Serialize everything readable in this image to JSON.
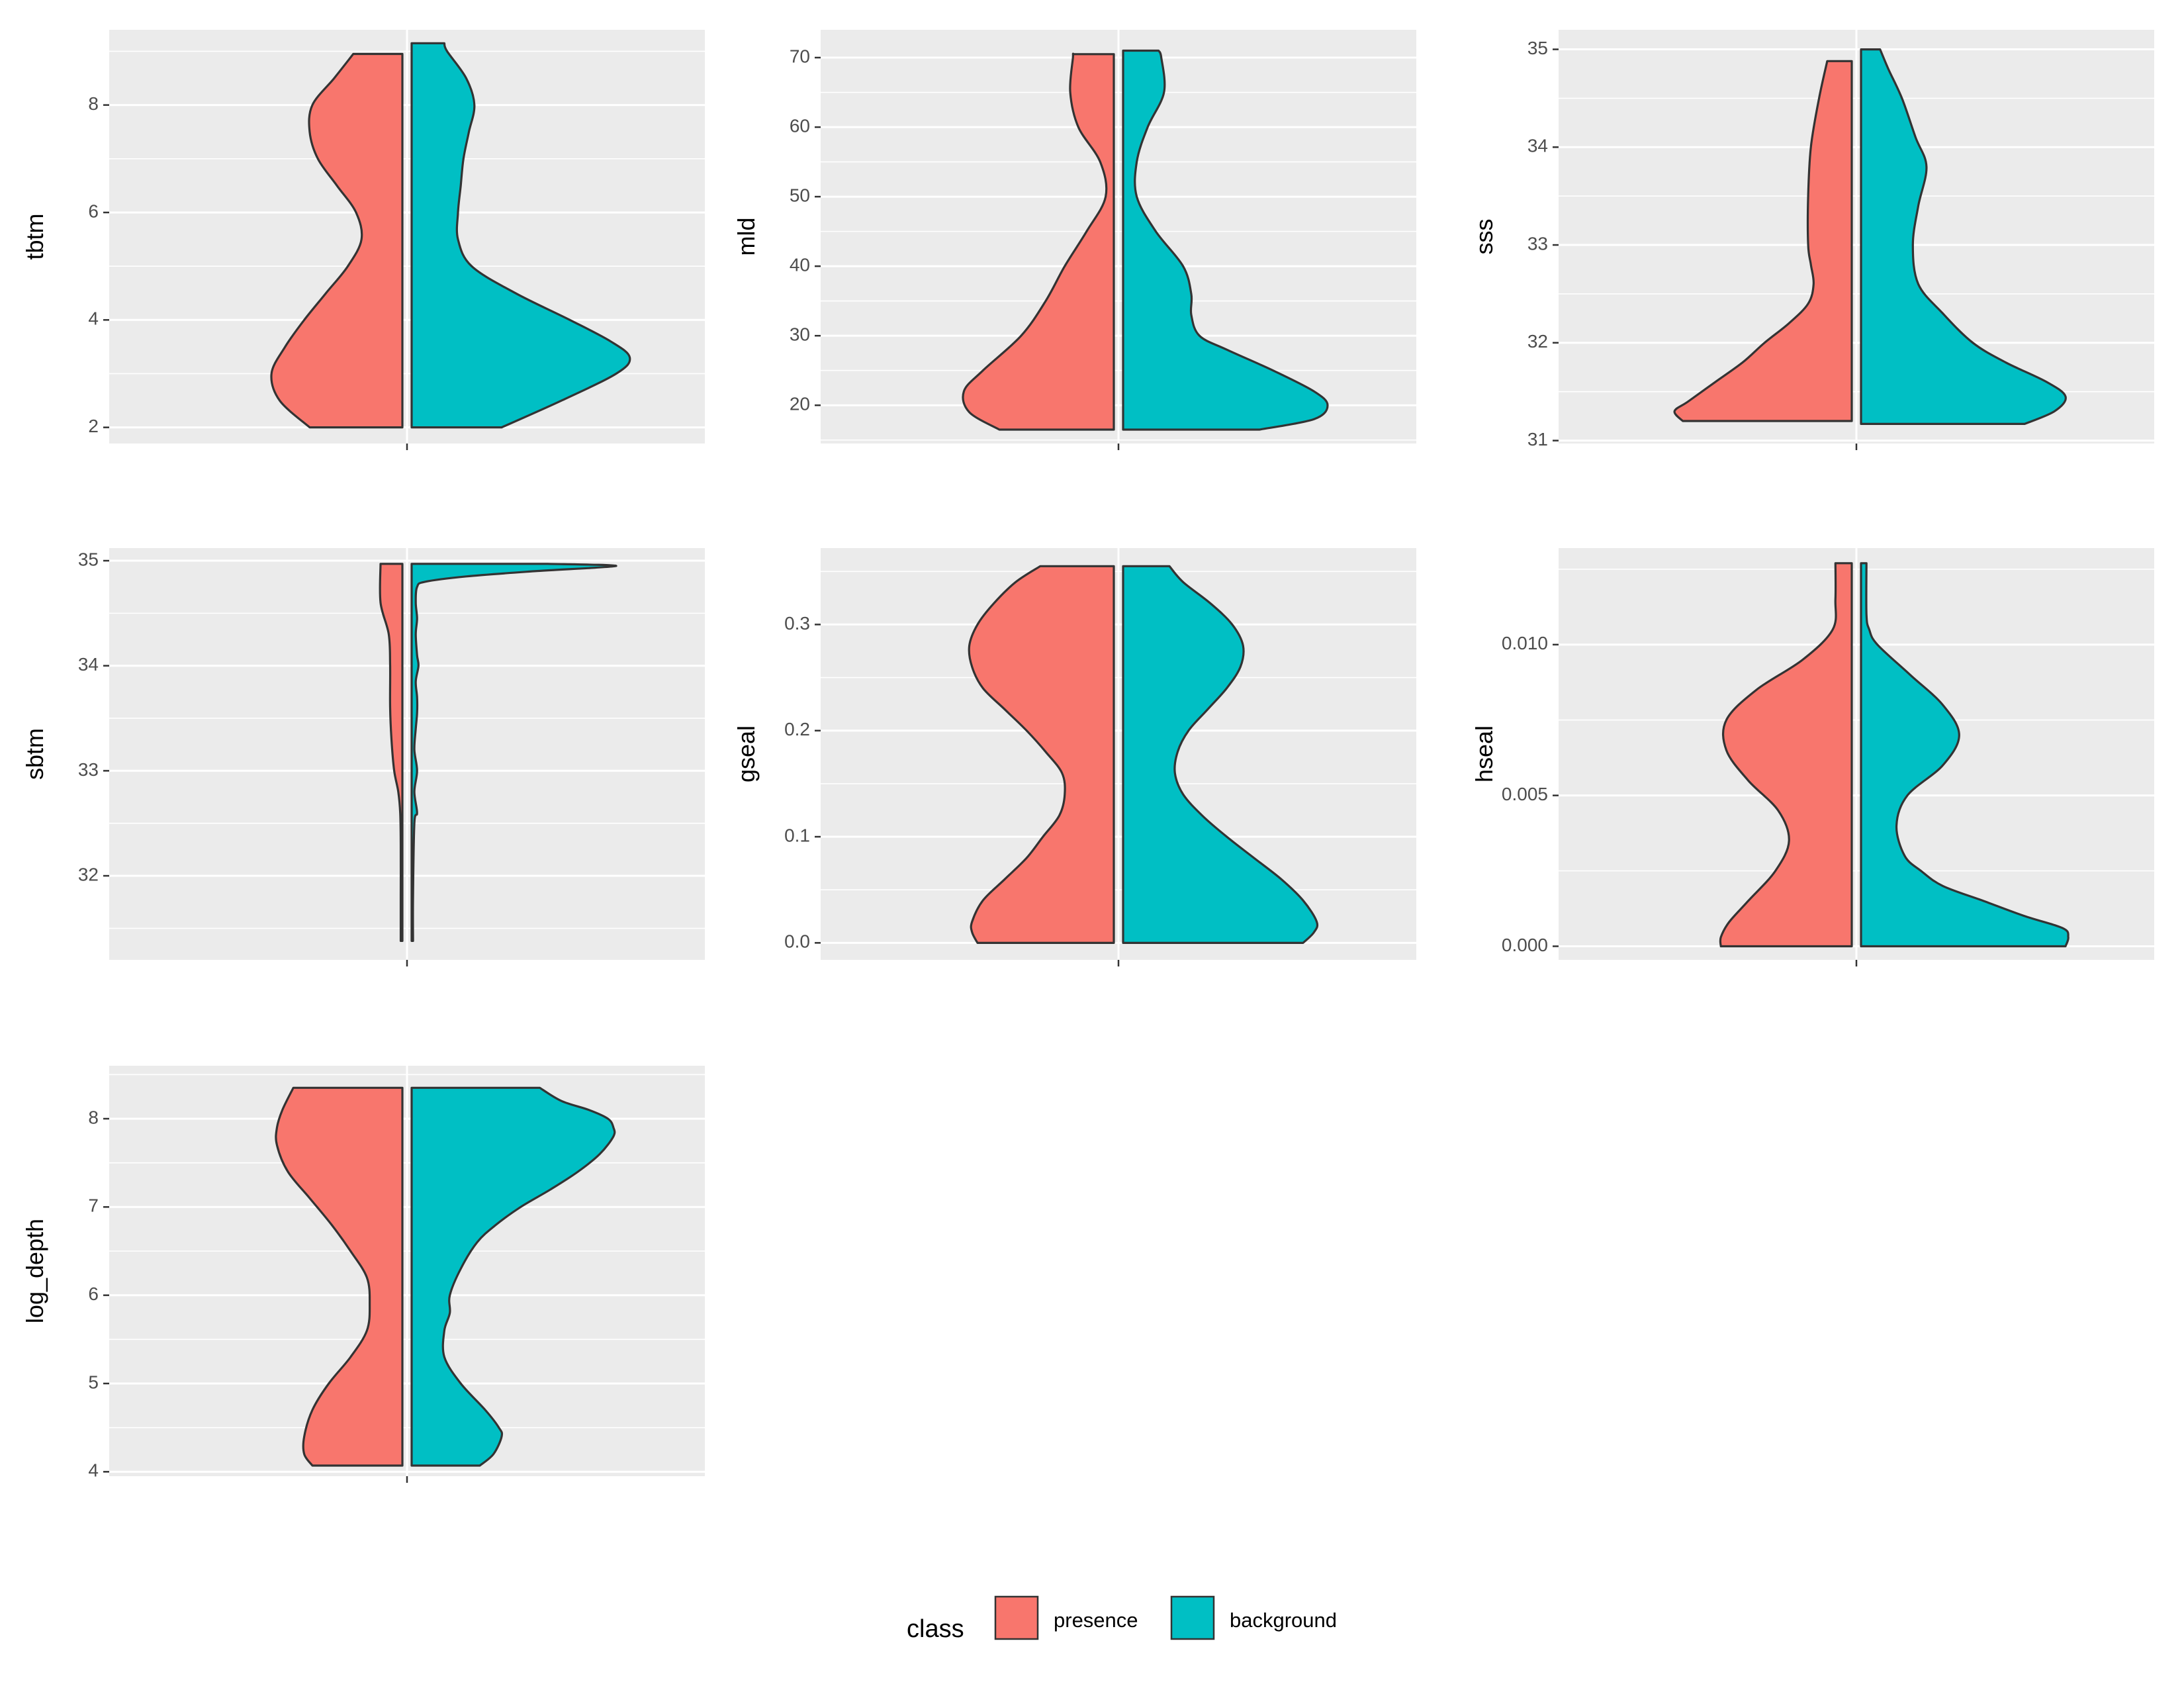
{
  "colors": {
    "presence": "#F8766D",
    "background": "#00BFC4",
    "panel_bg": "#EBEBEB",
    "grid": "#FFFFFF",
    "outline": "#333333",
    "tick_text": "#4D4D4D"
  },
  "legend": {
    "title": "class",
    "entries": [
      {
        "key": "presence",
        "label": "presence"
      },
      {
        "key": "background",
        "label": "background"
      }
    ]
  },
  "chart_data": [
    {
      "type": "split-violin",
      "ylabel": "tbtm",
      "ylim": [
        1.7,
        9.4
      ],
      "y_breaks": [
        2,
        4,
        6,
        8
      ],
      "y_tick_labels": [
        "2",
        "4",
        "6",
        "8"
      ],
      "y_minor": [
        3,
        5,
        7,
        9
      ],
      "presence": {
        "y": [
          2.0,
          2.5,
          3.0,
          3.5,
          4.0,
          4.5,
          5.0,
          5.5,
          6.0,
          6.5,
          7.0,
          7.5,
          8.0,
          8.5,
          8.95
        ],
        "width": [
          0.34,
          0.45,
          0.48,
          0.43,
          0.36,
          0.28,
          0.2,
          0.15,
          0.17,
          0.24,
          0.31,
          0.34,
          0.33,
          0.25,
          0.18
        ]
      },
      "background": {
        "y": [
          2.0,
          2.5,
          3.0,
          3.3,
          3.6,
          4.0,
          4.5,
          5.0,
          5.5,
          6.0,
          6.5,
          7.0,
          7.5,
          8.0,
          8.5,
          9.0,
          9.15
        ],
        "width": [
          0.33,
          0.55,
          0.75,
          0.8,
          0.73,
          0.58,
          0.38,
          0.22,
          0.17,
          0.17,
          0.18,
          0.19,
          0.21,
          0.23,
          0.2,
          0.13,
          0.12
        ]
      }
    },
    {
      "type": "split-violin",
      "ylabel": "mld",
      "ylim": [
        14.5,
        74
      ],
      "y_breaks": [
        20,
        30,
        40,
        50,
        60,
        70
      ],
      "y_tick_labels": [
        "20",
        "30",
        "40",
        "50",
        "60",
        "70"
      ],
      "y_minor": [
        15,
        25,
        35,
        45,
        55,
        65
      ],
      "presence": {
        "y": [
          16.5,
          19.0,
          22.0,
          25.0,
          30.0,
          35.0,
          40.0,
          45.0,
          50.0,
          55.0,
          60.0,
          65.0,
          70.0,
          70.5
        ],
        "width": [
          0.42,
          0.53,
          0.55,
          0.48,
          0.34,
          0.25,
          0.18,
          0.1,
          0.03,
          0.05,
          0.13,
          0.16,
          0.15,
          0.15
        ]
      },
      "background": {
        "y": [
          16.5,
          18.0,
          20.0,
          22.0,
          25.0,
          28.0,
          30.0,
          33.0,
          36.0,
          40.0,
          45.0,
          50.0,
          55.0,
          60.0,
          65.0,
          70.0,
          71.0
        ],
        "width": [
          0.5,
          0.7,
          0.75,
          0.7,
          0.55,
          0.38,
          0.28,
          0.25,
          0.25,
          0.22,
          0.12,
          0.05,
          0.05,
          0.09,
          0.15,
          0.14,
          0.13
        ]
      }
    },
    {
      "type": "split-violin",
      "ylabel": "sss",
      "ylim": [
        30.97,
        35.2
      ],
      "y_breaks": [
        31,
        32,
        33,
        34,
        35
      ],
      "y_tick_labels": [
        "31",
        "32",
        "33",
        "34",
        "35"
      ],
      "y_minor": [
        31.5,
        32.5,
        33.5,
        34.5
      ],
      "presence": {
        "y": [
          31.2,
          31.3,
          31.4,
          31.6,
          31.8,
          32.0,
          32.2,
          32.4,
          32.6,
          32.8,
          33.0,
          33.5,
          34.0,
          34.5,
          34.88
        ],
        "width": [
          0.62,
          0.65,
          0.6,
          0.5,
          0.4,
          0.32,
          0.23,
          0.16,
          0.14,
          0.15,
          0.16,
          0.16,
          0.15,
          0.12,
          0.09
        ]
      },
      "background": {
        "y": [
          31.17,
          31.3,
          31.45,
          31.6,
          31.8,
          32.0,
          32.3,
          32.6,
          33.0,
          33.4,
          33.8,
          34.1,
          34.5,
          34.8,
          35.0
        ],
        "width": [
          0.6,
          0.71,
          0.75,
          0.68,
          0.53,
          0.41,
          0.3,
          0.21,
          0.19,
          0.21,
          0.24,
          0.2,
          0.15,
          0.1,
          0.07
        ]
      }
    },
    {
      "type": "split-violin",
      "ylabel": "sbtm",
      "ylim": [
        31.2,
        35.12
      ],
      "y_breaks": [
        32,
        33,
        34,
        35
      ],
      "y_tick_labels": [
        "32",
        "33",
        "34",
        "35"
      ],
      "y_minor": [
        31.5,
        32.5,
        33.5,
        34.5
      ],
      "presence": {
        "y": [
          31.38,
          31.8,
          32.3,
          32.6,
          32.8,
          33.0,
          33.3,
          33.6,
          34.0,
          34.3,
          34.6,
          34.97
        ],
        "width": [
          0.006,
          0.006,
          0.006,
          0.008,
          0.015,
          0.03,
          0.04,
          0.045,
          0.045,
          0.05,
          0.08,
          0.08
        ]
      },
      "background": {
        "y": [
          31.38,
          31.8,
          32.5,
          32.6,
          32.8,
          33.0,
          33.2,
          33.4,
          33.55,
          33.7,
          33.85,
          34.0,
          34.1,
          34.3,
          34.45,
          34.6,
          34.75,
          34.8,
          34.85,
          34.9,
          34.95,
          34.97
        ],
        "width": [
          0.005,
          0.005,
          0.01,
          0.02,
          0.01,
          0.02,
          0.01,
          0.015,
          0.02,
          0.02,
          0.015,
          0.025,
          0.02,
          0.015,
          0.02,
          0.015,
          0.02,
          0.05,
          0.2,
          0.45,
          0.75,
          0.5
        ]
      }
    },
    {
      "type": "split-violin",
      "ylabel": "gseal",
      "ylim": [
        -0.016,
        0.372
      ],
      "y_breaks": [
        0.0,
        0.1,
        0.2,
        0.3
      ],
      "y_tick_labels": [
        "0.0",
        "0.1",
        "0.2",
        "0.3"
      ],
      "y_minor": [
        0.05,
        0.15,
        0.25,
        0.35
      ],
      "presence": {
        "y": [
          0.0,
          0.01,
          0.02,
          0.04,
          0.06,
          0.08,
          0.1,
          0.12,
          0.14,
          0.16,
          0.18,
          0.2,
          0.22,
          0.24,
          0.26,
          0.28,
          0.3,
          0.32,
          0.34,
          0.355
        ],
        "width": [
          0.5,
          0.52,
          0.52,
          0.48,
          0.4,
          0.32,
          0.26,
          0.2,
          0.18,
          0.19,
          0.25,
          0.32,
          0.4,
          0.48,
          0.52,
          0.53,
          0.5,
          0.44,
          0.36,
          0.27
        ]
      },
      "background": {
        "y": [
          0.0,
          0.01,
          0.02,
          0.04,
          0.06,
          0.08,
          0.1,
          0.12,
          0.14,
          0.16,
          0.18,
          0.2,
          0.22,
          0.24,
          0.26,
          0.28,
          0.3,
          0.32,
          0.34,
          0.355
        ],
        "width": [
          0.66,
          0.7,
          0.71,
          0.66,
          0.58,
          0.48,
          0.38,
          0.29,
          0.22,
          0.19,
          0.2,
          0.24,
          0.31,
          0.38,
          0.43,
          0.44,
          0.4,
          0.32,
          0.22,
          0.17
        ]
      }
    },
    {
      "type": "split-violin",
      "ylabel": "hseal",
      "ylim": [
        -0.00045,
        0.0132
      ],
      "y_breaks": [
        0.0,
        0.005,
        0.01
      ],
      "y_tick_labels": [
        "0.000",
        "0.005",
        "0.010"
      ],
      "y_minor": [
        0.0025,
        0.0075,
        0.0125
      ],
      "presence": {
        "y": [
          0.0,
          0.0003,
          0.0008,
          0.0015,
          0.0025,
          0.0035,
          0.0045,
          0.0055,
          0.0065,
          0.0075,
          0.0085,
          0.0095,
          0.0105,
          0.0115,
          0.0127
        ],
        "width": [
          0.48,
          0.48,
          0.45,
          0.38,
          0.28,
          0.23,
          0.27,
          0.38,
          0.46,
          0.46,
          0.35,
          0.18,
          0.07,
          0.06,
          0.06
        ]
      },
      "background": {
        "y": [
          0.0,
          0.0003,
          0.0006,
          0.001,
          0.0015,
          0.002,
          0.0025,
          0.003,
          0.004,
          0.005,
          0.006,
          0.007,
          0.008,
          0.009,
          0.01,
          0.0105,
          0.011,
          0.0127
        ],
        "width": [
          0.75,
          0.76,
          0.74,
          0.6,
          0.45,
          0.3,
          0.22,
          0.16,
          0.13,
          0.17,
          0.3,
          0.36,
          0.3,
          0.18,
          0.06,
          0.03,
          0.02,
          0.02
        ]
      }
    },
    {
      "type": "split-violin",
      "ylabel": "log_depth",
      "ylim": [
        3.95,
        8.6
      ],
      "y_breaks": [
        4,
        5,
        6,
        7,
        8
      ],
      "y_tick_labels": [
        "4",
        "5",
        "6",
        "7",
        "8"
      ],
      "y_minor": [
        4.5,
        5.5,
        6.5,
        7.5,
        8.5
      ],
      "presence": {
        "y": [
          4.07,
          4.2,
          4.4,
          4.7,
          5.0,
          5.3,
          5.6,
          5.9,
          6.2,
          6.5,
          6.8,
          7.1,
          7.4,
          7.7,
          7.9,
          8.1,
          8.35
        ],
        "width": [
          0.33,
          0.36,
          0.36,
          0.33,
          0.27,
          0.19,
          0.13,
          0.12,
          0.13,
          0.19,
          0.26,
          0.34,
          0.42,
          0.46,
          0.46,
          0.44,
          0.4
        ]
      },
      "background": {
        "y": [
          4.07,
          4.2,
          4.4,
          4.5,
          4.7,
          5.0,
          5.3,
          5.6,
          5.8,
          6.0,
          6.3,
          6.6,
          6.8,
          7.0,
          7.2,
          7.4,
          7.6,
          7.8,
          7.9,
          8.0,
          8.1,
          8.2,
          8.35
        ],
        "width": [
          0.25,
          0.3,
          0.33,
          0.32,
          0.27,
          0.18,
          0.12,
          0.12,
          0.14,
          0.14,
          0.18,
          0.24,
          0.31,
          0.4,
          0.51,
          0.61,
          0.69,
          0.74,
          0.74,
          0.72,
          0.65,
          0.55,
          0.47
        ]
      }
    }
  ]
}
